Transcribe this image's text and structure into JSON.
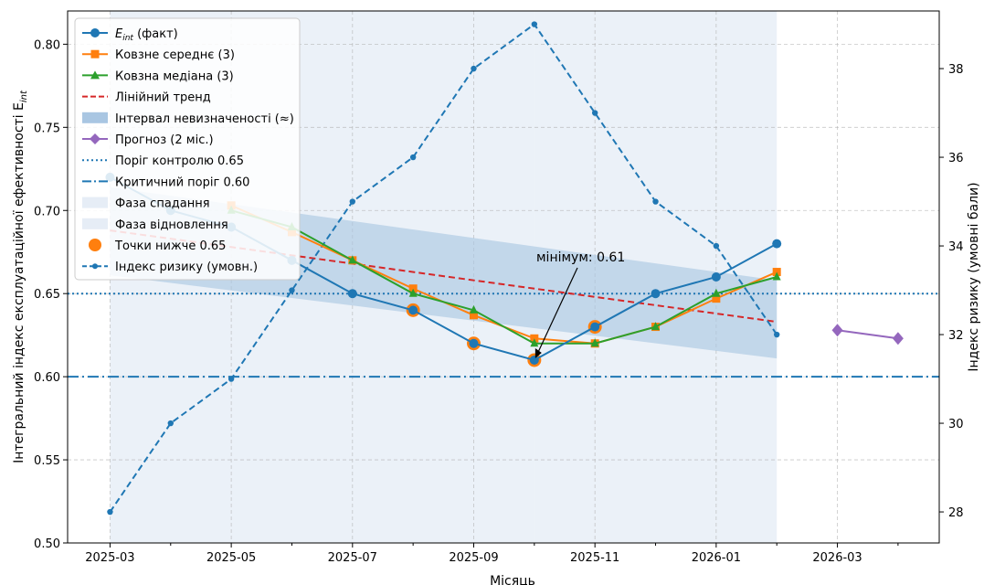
{
  "chart_data": {
    "type": "line",
    "xlabel": "Місяць",
    "ylabel": "Інтегральний індекс експлуатаційної ефективності E",
    "ylabel_sub": "int",
    "y2label": "Індекс ризику (умовні бали)",
    "xlim": [
      "2025-02",
      "2026-04-20"
    ],
    "ylim": [
      0.5,
      0.82
    ],
    "y2lim": [
      27.3,
      39.3
    ],
    "grid": true,
    "legend_position": "top-left",
    "x_ticks": [
      "2025-03",
      "2025-05",
      "2025-07",
      "2025-09",
      "2025-11",
      "2026-01",
      "2026-03"
    ],
    "y_ticks": [
      "0.50",
      "0.55",
      "0.60",
      "0.65",
      "0.70",
      "0.75",
      "0.80"
    ],
    "y2_ticks": [
      "28",
      "30",
      "32",
      "34",
      "36",
      "38"
    ],
    "x": [
      "2025-03",
      "2025-04",
      "2025-05",
      "2025-06",
      "2025-07",
      "2025-08",
      "2025-09",
      "2025-10",
      "2025-11",
      "2025-12",
      "2026-01",
      "2026-02"
    ],
    "series": [
      {
        "name": "E_int (факт)",
        "legend_label": "(факт)",
        "color": "#1f77b4",
        "marker": "circle",
        "values": [
          0.72,
          0.7,
          0.69,
          0.67,
          0.65,
          0.64,
          0.62,
          0.61,
          0.63,
          0.65,
          0.66,
          0.68
        ]
      },
      {
        "name": "Ковзне середнє (3)",
        "color": "#ff7f0e",
        "marker": "square",
        "values": [
          null,
          null,
          0.703,
          0.687,
          0.67,
          0.653,
          0.637,
          0.623,
          0.62,
          0.63,
          0.647,
          0.663
        ]
      },
      {
        "name": "Ковзна медіана (3)",
        "color": "#2ca02c",
        "marker": "triangle",
        "values": [
          null,
          null,
          0.7,
          0.69,
          0.67,
          0.65,
          0.64,
          0.62,
          0.62,
          0.63,
          0.65,
          0.66
        ]
      },
      {
        "name": "Лінійний тренд",
        "color": "#d62728",
        "style": "dashed",
        "start": 0.688,
        "end": 0.633
      },
      {
        "name": "Інтервал невизначеності (≈)",
        "color": "#a9c6e2",
        "upper_start": 0.714,
        "upper_end": 0.658,
        "lower_start": 0.661,
        "lower_end": 0.611
      },
      {
        "name": "Прогноз (2 міс.)",
        "color": "#9467bd",
        "marker": "diamond",
        "x": [
          "2026-03",
          "2026-04"
        ],
        "values": [
          0.628,
          0.623
        ]
      },
      {
        "name": "Індекс ризику (умовн.)",
        "color": "#1f77b4",
        "style": "dashed",
        "axis": "right",
        "values": [
          28,
          30,
          31,
          33,
          35,
          36,
          38,
          39,
          37,
          35,
          34,
          32
        ]
      }
    ],
    "thresholds": [
      {
        "name": "Поріг контролю 0.65",
        "value": 0.65,
        "style": "dotted",
        "color": "#1f77b4"
      },
      {
        "name": "Критичний поріг 0.60",
        "value": 0.6,
        "style": "dashdot",
        "color": "#1f77b4"
      }
    ],
    "phases": [
      {
        "name": "Фаза спадання",
        "from": "2025-03",
        "to": "2025-10"
      },
      {
        "name": "Фаза відновлення",
        "from": "2025-10",
        "to": "2026-02"
      }
    ],
    "below_points": {
      "name": "Точки нижче 0.65",
      "color": "#ff7f0e"
    },
    "annotation": {
      "text": "мінімум: 0.61",
      "x": "2025-10",
      "y": 0.61
    },
    "legend_entries": [
      "E_int (факт)",
      "Ковзне середнє (3)",
      "Ковзна медіана (3)",
      "Лінійний тренд",
      "Інтервал невизначеності (≈)",
      "Прогноз (2 міс.)",
      "Поріг контролю 0.65",
      "Критичний поріг 0.60",
      "Фаза спадання",
      "Фаза відновлення",
      "Точки нижче 0.65",
      "Індекс ризику (умовн.)"
    ]
  }
}
